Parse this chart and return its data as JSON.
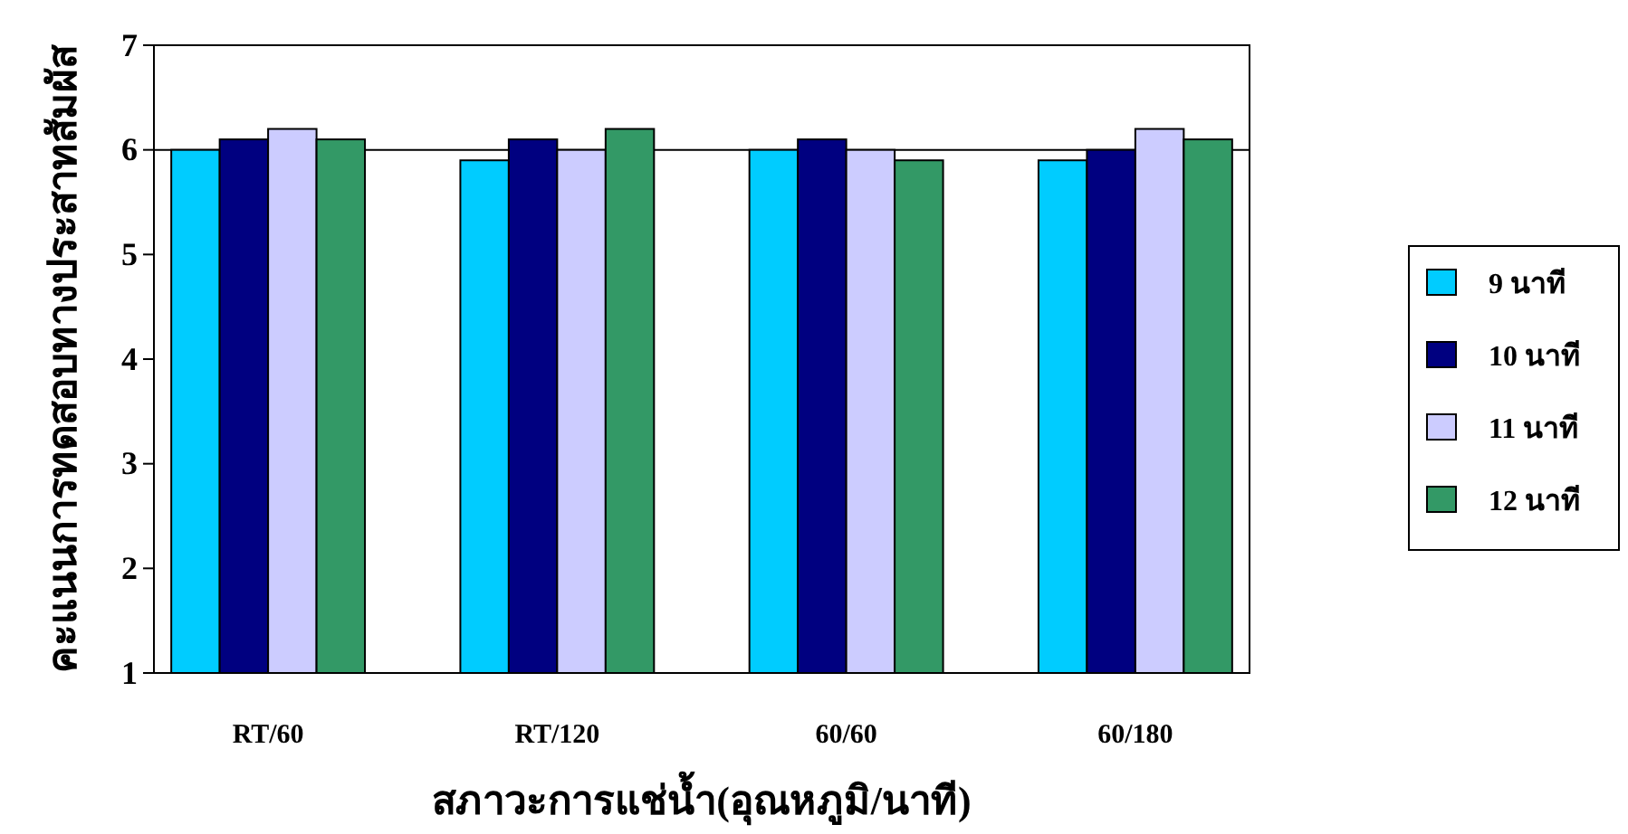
{
  "chart_data": {
    "type": "bar",
    "xlabel": "สภาวะการแช่น้ำ(อุณหภูมิ/นาที)",
    "ylabel": "คะแนนการทดสอบทางประสาทสัมผัส",
    "categories": [
      "RT/60",
      "RT/120",
      "60/60",
      "60/180"
    ],
    "series": [
      {
        "name": "9 นาที",
        "color": "#00ccff",
        "values": [
          6.0,
          5.9,
          6.0,
          5.9
        ]
      },
      {
        "name": "10 นาที",
        "color": "#000080",
        "values": [
          6.1,
          6.1,
          6.1,
          6.0
        ]
      },
      {
        "name": "11 นาที",
        "color": "#ccccff",
        "values": [
          6.2,
          6.0,
          6.0,
          6.2
        ]
      },
      {
        "name": "12 นาที",
        "color": "#339966",
        "values": [
          6.1,
          6.2,
          5.9,
          6.1
        ]
      }
    ],
    "ylim": [
      1,
      7
    ],
    "yticks": [
      1,
      2,
      3,
      4,
      5,
      6,
      7
    ],
    "grid": false,
    "legend": "right",
    "ref_lines": [
      {
        "axis": "y",
        "value": 6
      }
    ]
  }
}
